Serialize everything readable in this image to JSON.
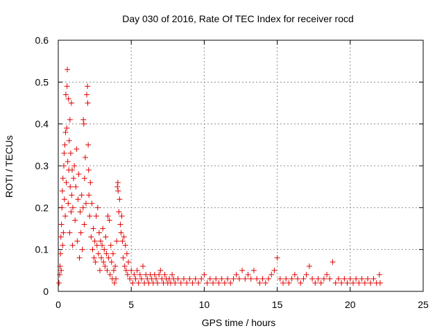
{
  "chart_data": {
    "type": "scatter",
    "title": "Day 030 of 2016, Rate Of TEC Index for receiver rocd",
    "xlabel": "GPS time / hours",
    "ylabel": "ROTI / TECUs",
    "xlim": [
      0,
      25
    ],
    "ylim": [
      0,
      0.6
    ],
    "x_ticks": [
      0,
      5,
      10,
      15,
      20,
      25
    ],
    "y_ticks": [
      0,
      0.1,
      0.2,
      0.3,
      0.4,
      0.5,
      0.6
    ],
    "x_tick_labels": [
      "0",
      "5",
      "10",
      "15",
      "20",
      "25"
    ],
    "y_tick_labels": [
      "0",
      "0.1",
      "0.2",
      "0.3",
      "0.4",
      "0.5",
      "0.6"
    ],
    "grid": true,
    "marker": "plus",
    "marker_color": "#e00000",
    "series": [
      {
        "name": "ROTI",
        "color": "#e00000",
        "points": [
          [
            0.05,
            0.02
          ],
          [
            0.1,
            0.04
          ],
          [
            0.12,
            0.06
          ],
          [
            0.15,
            0.09
          ],
          [
            0.18,
            0.13
          ],
          [
            0.2,
            0.05
          ],
          [
            0.22,
            0.16
          ],
          [
            0.25,
            0.2
          ],
          [
            0.28,
            0.24
          ],
          [
            0.3,
            0.11
          ],
          [
            0.32,
            0.27
          ],
          [
            0.35,
            0.14
          ],
          [
            0.38,
            0.3
          ],
          [
            0.4,
            0.33
          ],
          [
            0.42,
            0.22
          ],
          [
            0.45,
            0.35
          ],
          [
            0.48,
            0.18
          ],
          [
            0.5,
            0.38
          ],
          [
            0.52,
            0.47
          ],
          [
            0.55,
            0.26
          ],
          [
            0.58,
            0.39
          ],
          [
            0.6,
            0.49
          ],
          [
            0.62,
            0.53
          ],
          [
            0.65,
            0.31
          ],
          [
            0.68,
            0.21
          ],
          [
            0.7,
            0.46
          ],
          [
            0.72,
            0.29
          ],
          [
            0.75,
            0.36
          ],
          [
            0.78,
            0.14
          ],
          [
            0.8,
            0.41
          ],
          [
            0.82,
            0.25
          ],
          [
            0.85,
            0.33
          ],
          [
            0.88,
            0.19
          ],
          [
            0.9,
            0.45
          ],
          [
            0.92,
            0.23
          ],
          [
            0.95,
            0.29
          ],
          [
            0.98,
            0.11
          ],
          [
            1.0,
            0.2
          ],
          [
            1.05,
            0.27
          ],
          [
            1.1,
            0.3
          ],
          [
            1.15,
            0.17
          ],
          [
            1.2,
            0.25
          ],
          [
            1.25,
            0.34
          ],
          [
            1.3,
            0.12
          ],
          [
            1.35,
            0.22
          ],
          [
            1.4,
            0.28
          ],
          [
            1.45,
            0.08
          ],
          [
            1.5,
            0.19
          ],
          [
            1.55,
            0.14
          ],
          [
            1.6,
            0.23
          ],
          [
            1.65,
            0.1
          ],
          [
            1.7,
            0.2
          ],
          [
            1.72,
            0.41
          ],
          [
            1.75,
            0.4
          ],
          [
            1.78,
            0.16
          ],
          [
            1.8,
            0.27
          ],
          [
            1.85,
            0.32
          ],
          [
            1.9,
            0.21
          ],
          [
            1.95,
            0.47
          ],
          [
            2.0,
            0.49
          ],
          [
            2.02,
            0.45
          ],
          [
            2.05,
            0.35
          ],
          [
            2.08,
            0.29
          ],
          [
            2.1,
            0.23
          ],
          [
            2.15,
            0.18
          ],
          [
            2.2,
            0.26
          ],
          [
            2.25,
            0.13
          ],
          [
            2.3,
            0.21
          ],
          [
            2.35,
            0.1
          ],
          [
            2.4,
            0.15
          ],
          [
            2.45,
            0.08
          ],
          [
            2.5,
            0.12
          ],
          [
            2.55,
            0.07
          ],
          [
            2.6,
            0.18
          ],
          [
            2.65,
            0.11
          ],
          [
            2.7,
            0.2
          ],
          [
            2.75,
            0.09
          ],
          [
            2.8,
            0.14
          ],
          [
            2.85,
            0.05
          ],
          [
            2.9,
            0.12
          ],
          [
            2.95,
            0.08
          ],
          [
            3.0,
            0.11
          ],
          [
            3.05,
            0.15
          ],
          [
            3.1,
            0.07
          ],
          [
            3.15,
            0.1
          ],
          [
            3.2,
            0.06
          ],
          [
            3.25,
            0.13
          ],
          [
            3.3,
            0.09
          ],
          [
            3.35,
            0.05
          ],
          [
            3.4,
            0.18
          ],
          [
            3.45,
            0.08
          ],
          [
            3.5,
            0.17
          ],
          [
            3.55,
            0.04
          ],
          [
            3.6,
            0.11
          ],
          [
            3.65,
            0.07
          ],
          [
            3.7,
            0.03
          ],
          [
            3.75,
            0.09
          ],
          [
            3.8,
            0.05
          ],
          [
            3.85,
            0.02
          ],
          [
            3.9,
            0.06
          ],
          [
            3.95,
            0.03
          ],
          [
            4.0,
            0.12
          ],
          [
            4.05,
            0.25
          ],
          [
            4.08,
            0.26
          ],
          [
            4.1,
            0.24
          ],
          [
            4.15,
            0.19
          ],
          [
            4.2,
            0.22
          ],
          [
            4.25,
            0.16
          ],
          [
            4.3,
            0.14
          ],
          [
            4.35,
            0.18
          ],
          [
            4.4,
            0.12
          ],
          [
            4.45,
            0.08
          ],
          [
            4.5,
            0.13
          ],
          [
            4.55,
            0.06
          ],
          [
            4.6,
            0.11
          ],
          [
            4.65,
            0.05
          ],
          [
            4.7,
            0.09
          ],
          [
            4.75,
            0.04
          ],
          [
            4.8,
            0.07
          ],
          [
            4.9,
            0.03
          ],
          [
            5.0,
            0.05
          ],
          [
            5.1,
            0.02
          ],
          [
            5.2,
            0.04
          ],
          [
            5.3,
            0.03
          ],
          [
            5.4,
            0.05
          ],
          [
            5.5,
            0.02
          ],
          [
            5.6,
            0.04
          ],
          [
            5.7,
            0.03
          ],
          [
            5.8,
            0.06
          ],
          [
            5.9,
            0.02
          ],
          [
            6.0,
            0.04
          ],
          [
            6.1,
            0.03
          ],
          [
            6.2,
            0.02
          ],
          [
            6.3,
            0.04
          ],
          [
            6.4,
            0.03
          ],
          [
            6.5,
            0.02
          ],
          [
            6.6,
            0.04
          ],
          [
            6.7,
            0.03
          ],
          [
            6.8,
            0.02
          ],
          [
            6.9,
            0.04
          ],
          [
            7.0,
            0.05
          ],
          [
            7.1,
            0.03
          ],
          [
            7.2,
            0.02
          ],
          [
            7.3,
            0.04
          ],
          [
            7.4,
            0.03
          ],
          [
            7.5,
            0.02
          ],
          [
            7.6,
            0.03
          ],
          [
            7.7,
            0.02
          ],
          [
            7.8,
            0.04
          ],
          [
            7.9,
            0.03
          ],
          [
            8.0,
            0.02
          ],
          [
            8.2,
            0.03
          ],
          [
            8.4,
            0.02
          ],
          [
            8.6,
            0.03
          ],
          [
            8.8,
            0.02
          ],
          [
            9.0,
            0.03
          ],
          [
            9.2,
            0.02
          ],
          [
            9.4,
            0.03
          ],
          [
            9.6,
            0.02
          ],
          [
            9.8,
            0.03
          ],
          [
            10.0,
            0.04
          ],
          [
            10.2,
            0.02
          ],
          [
            10.4,
            0.03
          ],
          [
            10.6,
            0.02
          ],
          [
            10.8,
            0.03
          ],
          [
            11.0,
            0.02
          ],
          [
            11.2,
            0.03
          ],
          [
            11.4,
            0.02
          ],
          [
            11.6,
            0.03
          ],
          [
            11.8,
            0.02
          ],
          [
            12.0,
            0.03
          ],
          [
            12.2,
            0.04
          ],
          [
            12.4,
            0.03
          ],
          [
            12.6,
            0.05
          ],
          [
            12.8,
            0.03
          ],
          [
            13.0,
            0.04
          ],
          [
            13.2,
            0.03
          ],
          [
            13.4,
            0.05
          ],
          [
            13.6,
            0.03
          ],
          [
            13.8,
            0.02
          ],
          [
            14.0,
            0.03
          ],
          [
            14.2,
            0.02
          ],
          [
            14.4,
            0.03
          ],
          [
            14.6,
            0.04
          ],
          [
            14.8,
            0.05
          ],
          [
            15.0,
            0.08
          ],
          [
            15.2,
            0.03
          ],
          [
            15.4,
            0.02
          ],
          [
            15.6,
            0.03
          ],
          [
            15.8,
            0.02
          ],
          [
            16.0,
            0.03
          ],
          [
            16.2,
            0.04
          ],
          [
            16.4,
            0.03
          ],
          [
            16.6,
            0.02
          ],
          [
            16.8,
            0.03
          ],
          [
            17.0,
            0.04
          ],
          [
            17.2,
            0.06
          ],
          [
            17.4,
            0.03
          ],
          [
            17.6,
            0.02
          ],
          [
            17.8,
            0.03
          ],
          [
            18.0,
            0.02
          ],
          [
            18.2,
            0.03
          ],
          [
            18.4,
            0.04
          ],
          [
            18.6,
            0.03
          ],
          [
            18.8,
            0.07
          ],
          [
            19.0,
            0.02
          ],
          [
            19.2,
            0.03
          ],
          [
            19.4,
            0.02
          ],
          [
            19.6,
            0.03
          ],
          [
            19.8,
            0.02
          ],
          [
            20.0,
            0.03
          ],
          [
            20.2,
            0.02
          ],
          [
            20.4,
            0.03
          ],
          [
            20.6,
            0.02
          ],
          [
            20.8,
            0.03
          ],
          [
            21.0,
            0.02
          ],
          [
            21.2,
            0.03
          ],
          [
            21.4,
            0.02
          ],
          [
            21.6,
            0.03
          ],
          [
            21.8,
            0.02
          ],
          [
            22.0,
            0.04
          ],
          [
            22.05,
            0.02
          ]
        ]
      }
    ]
  }
}
